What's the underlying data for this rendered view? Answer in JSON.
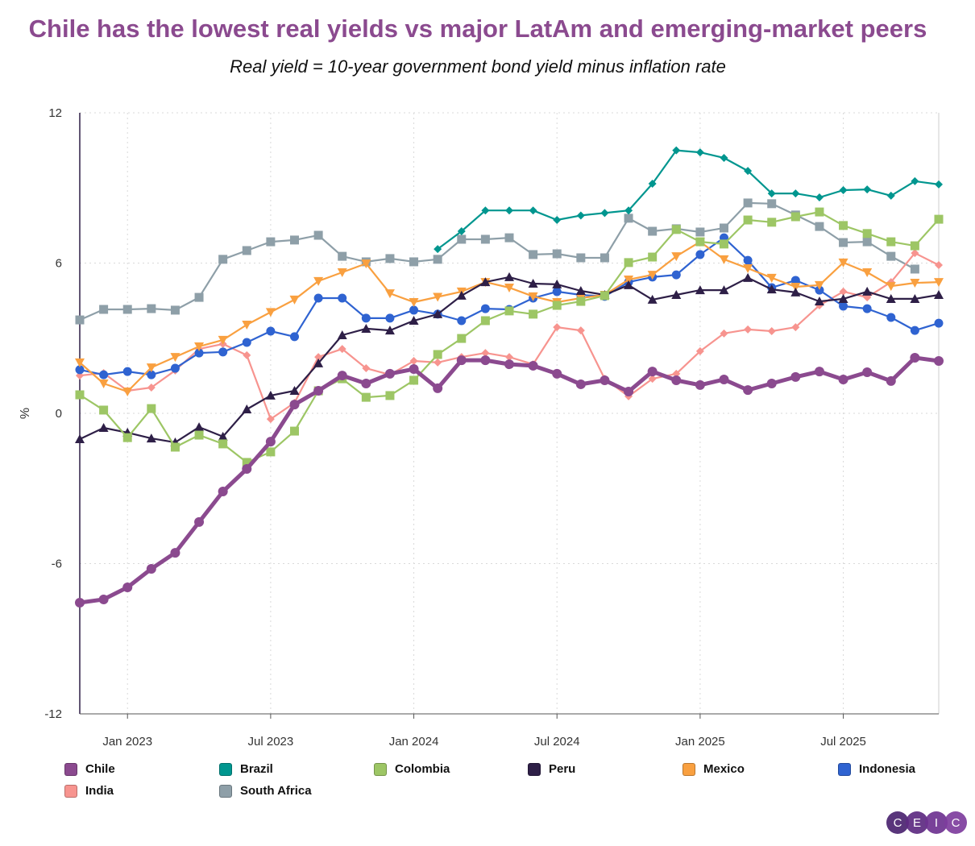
{
  "chart_data": {
    "type": "line",
    "title": "Chile has the lowest real yields vs major LatAm and emerging-market peers",
    "subtitle": "Real yield = 10-year government bond yield minus inflation rate",
    "ylabel": "%",
    "xlabel": "",
    "ylim": [
      -12,
      12
    ],
    "yticks": [
      "12",
      "6",
      "0",
      "-6",
      "-12"
    ],
    "ytick_values": [
      12,
      6,
      0,
      -6,
      -12
    ],
    "xticks": [
      {
        "label": "Jan 2023",
        "index": 2
      },
      {
        "label": "Jul 2023",
        "index": 8
      },
      {
        "label": "Jan 2024",
        "index": 14
      },
      {
        "label": "Jul 2024",
        "index": 20
      },
      {
        "label": "Jan 2025",
        "index": 26
      },
      {
        "label": "Jul 2025",
        "index": 32
      }
    ],
    "x": [
      "Nov 2022",
      "Dec 2022",
      "Jan 2023",
      "Feb 2023",
      "Mar 2023",
      "Apr 2023",
      "May 2023",
      "Jun 2023",
      "Jul 2023",
      "Aug 2023",
      "Sep 2023",
      "Oct 2023",
      "Nov 2023",
      "Dec 2023",
      "Jan 2024",
      "Feb 2024",
      "Mar 2024",
      "Apr 2024",
      "May 2024",
      "Jun 2024",
      "Jul 2024",
      "Aug 2024",
      "Sep 2024",
      "Oct 2024",
      "Nov 2024",
      "Dec 2024",
      "Jan 2025",
      "Feb 2025",
      "Mar 2025",
      "Apr 2025",
      "May 2025",
      "Jun 2025",
      "Jul 2025",
      "Aug 2025",
      "Sep 2025",
      "Oct 2025",
      "Nov 2025"
    ],
    "grid": true,
    "legend_position": "bottom",
    "series": [
      {
        "name": "South Africa",
        "color": "#8E9FA8",
        "marker": "square",
        "values": [
          3.73,
          4.15,
          4.15,
          4.18,
          4.12,
          4.63,
          6.15,
          6.5,
          6.85,
          6.92,
          7.11,
          6.27,
          6.05,
          6.18,
          6.05,
          6.15,
          6.95,
          6.95,
          7.01,
          6.34,
          6.37,
          6.21,
          6.21,
          7.79,
          7.27,
          7.37,
          7.24,
          7.4,
          8.4,
          8.37,
          7.92,
          7.46,
          6.82,
          6.85,
          6.27,
          5.76,
          null
        ]
      },
      {
        "name": "India",
        "color": "#F7948F",
        "marker": "diamond",
        "values": [
          1.51,
          1.61,
          0.9,
          1.03,
          1.71,
          2.57,
          2.77,
          2.32,
          -0.23,
          0.42,
          2.25,
          2.57,
          1.8,
          1.54,
          2.09,
          2.03,
          2.25,
          2.41,
          2.25,
          1.96,
          3.44,
          3.31,
          1.38,
          0.68,
          1.38,
          1.58,
          2.48,
          3.19,
          3.35,
          3.28,
          3.44,
          4.31,
          4.86,
          4.63,
          5.24,
          6.4,
          5.92
        ]
      },
      {
        "name": "Indonesia",
        "color": "#2F63D1",
        "marker": "circle",
        "values": [
          1.74,
          1.54,
          1.67,
          1.54,
          1.8,
          2.41,
          2.45,
          2.83,
          3.28,
          3.06,
          4.6,
          4.6,
          3.8,
          3.8,
          4.12,
          3.96,
          3.7,
          4.18,
          4.15,
          4.6,
          4.86,
          4.73,
          4.67,
          5.24,
          5.44,
          5.53,
          6.34,
          7.01,
          6.11,
          5.02,
          5.31,
          4.92,
          4.28,
          4.18,
          3.83,
          3.31,
          3.6
        ]
      },
      {
        "name": "Mexico",
        "color": "#F9A040",
        "marker": "triangle-down",
        "values": [
          2.03,
          1.19,
          0.87,
          1.83,
          2.25,
          2.67,
          2.93,
          3.54,
          4.04,
          4.54,
          5.28,
          5.63,
          5.98,
          4.79,
          4.44,
          4.65,
          4.86,
          5.24,
          5.02,
          4.67,
          4.44,
          4.6,
          4.73,
          5.34,
          5.53,
          6.27,
          6.85,
          6.15,
          5.79,
          5.41,
          5.05,
          5.12,
          6.02,
          5.63,
          5.08,
          5.21,
          5.24
        ]
      },
      {
        "name": "Peru",
        "color": "#2E1F47",
        "marker": "triangle-up",
        "values": [
          -1.03,
          -0.58,
          -0.77,
          -1.0,
          -1.16,
          -0.55,
          -0.93,
          0.16,
          0.71,
          0.9,
          2.0,
          3.12,
          3.38,
          3.31,
          3.7,
          3.96,
          4.7,
          5.24,
          5.44,
          5.18,
          5.15,
          4.89,
          4.73,
          5.12,
          4.54,
          4.73,
          4.92,
          4.92,
          5.41,
          4.95,
          4.83,
          4.47,
          4.57,
          4.86,
          4.57,
          4.57,
          4.73
        ]
      },
      {
        "name": "Colombia",
        "color": "#9DC665",
        "marker": "square",
        "values": [
          0.74,
          0.13,
          -0.97,
          0.19,
          -1.35,
          -0.87,
          -1.22,
          -1.96,
          -1.54,
          -0.71,
          0.9,
          1.38,
          0.64,
          0.71,
          1.32,
          2.35,
          2.99,
          3.7,
          4.09,
          3.96,
          4.31,
          4.47,
          4.7,
          6.02,
          6.24,
          7.34,
          6.85,
          6.76,
          7.72,
          7.63,
          7.85,
          8.04,
          7.5,
          7.18,
          6.85,
          6.69,
          7.75
        ]
      },
      {
        "name": "Brazil",
        "color": "#00968F",
        "marker": "diamond",
        "values": [
          null,
          null,
          null,
          null,
          null,
          null,
          null,
          null,
          null,
          null,
          null,
          null,
          null,
          null,
          null,
          6.56,
          7.27,
          8.1,
          8.1,
          8.1,
          7.72,
          7.9,
          8.0,
          8.1,
          9.17,
          10.5,
          10.42,
          10.2,
          9.68,
          8.78,
          8.78,
          8.62,
          8.91,
          8.94,
          8.69,
          9.27,
          9.14
        ]
      },
      {
        "name": "Chile",
        "color": "#8B4A8F",
        "marker": "circle",
        "values": [
          -7.56,
          -7.43,
          -6.95,
          -6.21,
          -5.57,
          -4.34,
          -3.12,
          -2.22,
          -1.13,
          0.35,
          0.9,
          1.51,
          1.19,
          1.58,
          1.77,
          1.0,
          2.12,
          2.12,
          1.96,
          1.9,
          1.58,
          1.16,
          1.32,
          0.87,
          1.67,
          1.32,
          1.13,
          1.35,
          0.93,
          1.19,
          1.45,
          1.67,
          1.35,
          1.64,
          1.29,
          2.22,
          2.09
        ]
      }
    ],
    "legend": [
      {
        "name": "Chile",
        "color": "#8B4A8F"
      },
      {
        "name": "Brazil",
        "color": "#00968F"
      },
      {
        "name": "Colombia",
        "color": "#9DC665"
      },
      {
        "name": "Peru",
        "color": "#2E1F47"
      },
      {
        "name": "Mexico",
        "color": "#F9A040"
      },
      {
        "name": "Indonesia",
        "color": "#2F63D1"
      },
      {
        "name": "India",
        "color": "#F7948F"
      },
      {
        "name": "South Africa",
        "color": "#8E9FA8"
      }
    ]
  },
  "logo": {
    "letters": [
      "C",
      "E",
      "I",
      "C"
    ],
    "colors": [
      "#4B2470",
      "#5E2B82",
      "#6E3391",
      "#7E3D9E"
    ]
  }
}
